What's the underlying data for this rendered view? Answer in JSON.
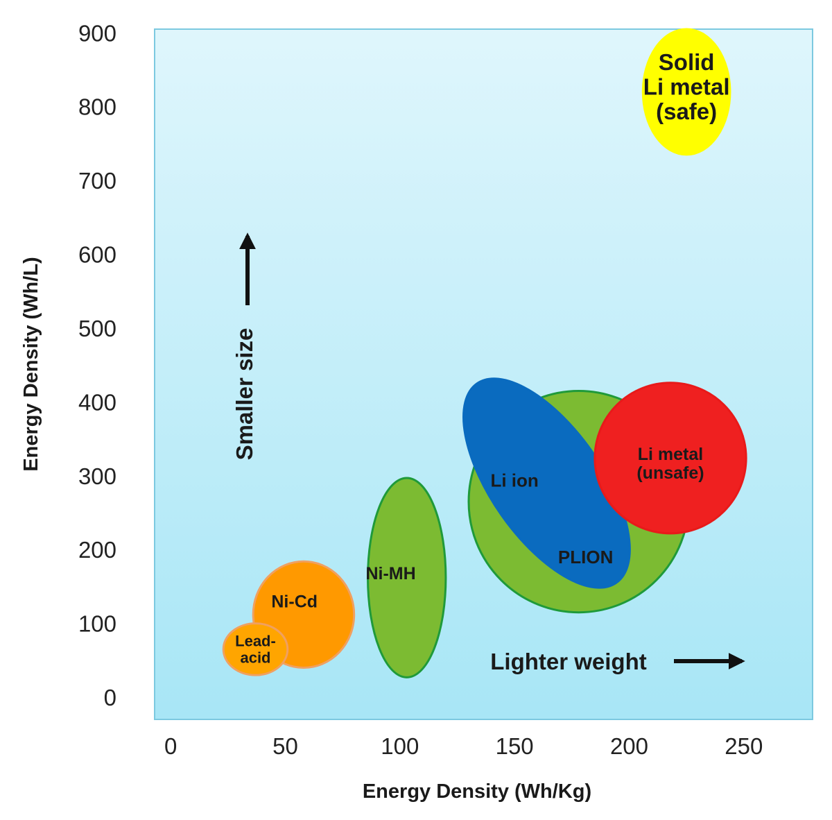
{
  "chart_data": {
    "type": "scatter",
    "title": "",
    "xlabel": "Energy Density  (Wh/Kg)",
    "ylabel": "Energy Density  (Wh/L)",
    "xlim": [
      -7,
      280
    ],
    "ylim": [
      -30,
      905
    ],
    "x_ticks": [
      "0",
      "50",
      "100",
      "150",
      "200",
      "250"
    ],
    "x_tick_values": [
      0,
      50,
      100,
      150,
      200,
      250
    ],
    "y_ticks": [
      "0",
      "100",
      "200",
      "300",
      "400",
      "500",
      "600",
      "700",
      "800",
      "900"
    ],
    "y_tick_values": [
      0,
      100,
      200,
      300,
      400,
      500,
      600,
      700,
      800,
      900
    ],
    "grid": false,
    "regions": [
      {
        "name": "PLION",
        "label_lines": [
          "PLION"
        ],
        "cx": 178,
        "cy": 265,
        "rx": 48,
        "ry": 150,
        "rotate": 0,
        "fill": "#7cbb32",
        "stroke": "#1f9a3a",
        "label_x": 181,
        "label_y": 190
      },
      {
        "name": "Li ion",
        "label_lines": [
          "Li ion"
        ],
        "cx": 164,
        "cy": 290,
        "rx": 53,
        "ry": 75,
        "rotate": 55,
        "fill": "#0a6bbf",
        "stroke": "#0a6bbf",
        "label_x": 150,
        "label_y": 294
      },
      {
        "name": "Li metal (unsafe)",
        "label_lines": [
          "Li metal",
          "(unsafe)"
        ],
        "cx": 218,
        "cy": 324,
        "rx": 33,
        "ry": 102,
        "rotate": 0,
        "fill": "#ef2020",
        "stroke": "#e81a1a",
        "label_x": 218,
        "label_y": 317
      },
      {
        "name": "Ni-MH",
        "label_lines": [
          "Ni-MH"
        ],
        "cx": 103,
        "cy": 162,
        "rx": 17,
        "ry": 135,
        "rotate": 0,
        "fill": "#7cbb32",
        "stroke": "#1f9a3a",
        "label_x": 96,
        "label_y": 168
      },
      {
        "name": "Ni-Cd",
        "label_lines": [
          "Ni-Cd"
        ],
        "cx": 58,
        "cy": 112,
        "rx": 22,
        "ry": 72,
        "rotate": 0,
        "fill": "#ff9900",
        "stroke": "#f0a060",
        "label_x": 54,
        "label_y": 130
      },
      {
        "name": "Lead-acid",
        "label_lines": [
          "Lead-",
          "acid"
        ],
        "cx": 37,
        "cy": 65,
        "rx": 14,
        "ry": 35,
        "rotate": 0,
        "fill": "#ffa500",
        "stroke": "#f0a060",
        "label_x": 37,
        "label_y": 65
      },
      {
        "name": "Solid Li metal (safe)",
        "label_lines": [
          "Solid",
          "Li metal",
          "(safe)"
        ],
        "cx": 225,
        "cy": 820,
        "rx": 19,
        "ry": 85,
        "rotate": 0,
        "fill": "#ffff00",
        "stroke": "#ffff00",
        "label_x": 225,
        "label_y": 827
      }
    ],
    "annotations": [
      {
        "text": "Smaller size",
        "direction": "up"
      },
      {
        "text": "Lighter weight",
        "direction": "right"
      }
    ],
    "plot_background": [
      "#dff6fc",
      "#a8e6f6"
    ],
    "plot_border": "#7cc9e0"
  }
}
